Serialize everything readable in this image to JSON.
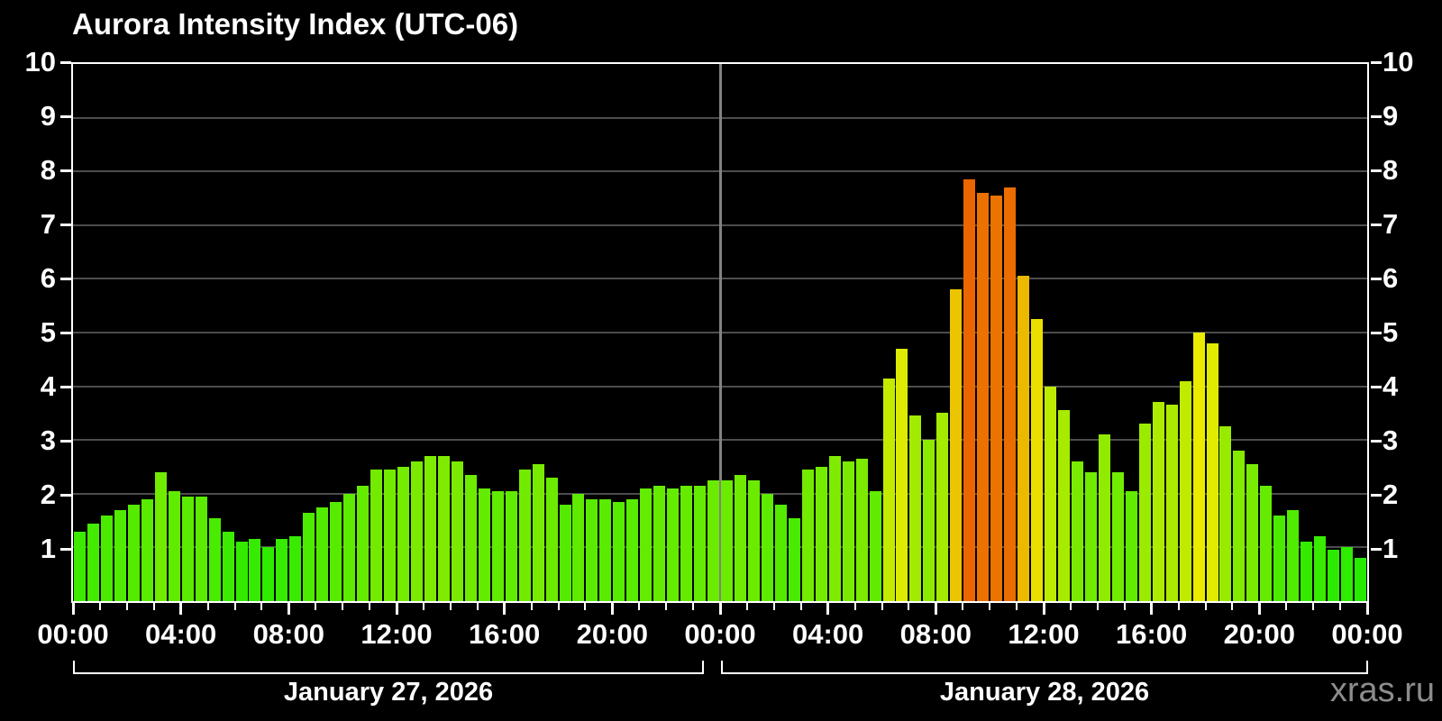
{
  "title": "Aurora Intensity Index (UTC-06)",
  "watermark": "xras.ru",
  "chart_data": {
    "type": "bar",
    "title": "Aurora Intensity Index (UTC-06)",
    "timezone": "UTC-06",
    "ylim": [
      0,
      10
    ],
    "y_ticks": [
      1,
      2,
      3,
      4,
      5,
      6,
      7,
      8,
      9,
      10
    ],
    "y_labels_both_sides": true,
    "grid": true,
    "interval_minutes": 30,
    "x_tick_labels": [
      "00:00",
      "04:00",
      "08:00",
      "12:00",
      "16:00",
      "20:00",
      "00:00",
      "04:00",
      "08:00",
      "12:00",
      "16:00",
      "20:00",
      "00:00"
    ],
    "days": [
      {
        "label": "January 27, 2026",
        "values": [
          1.3,
          1.45,
          1.6,
          1.7,
          1.8,
          1.9,
          2.4,
          2.05,
          1.95,
          1.95,
          1.55,
          1.3,
          1.1,
          1.15,
          1.0,
          1.15,
          1.2,
          1.65,
          1.75,
          1.85,
          2.0,
          2.15,
          2.45,
          2.45,
          2.5,
          2.6,
          2.7,
          2.7,
          2.6,
          2.35,
          2.1,
          2.05,
          2.05,
          2.45,
          2.55,
          2.3,
          1.8,
          2.0,
          1.9,
          1.9,
          1.85,
          1.9,
          2.1,
          2.15,
          2.1,
          2.15,
          2.15,
          2.25
        ]
      },
      {
        "label": "January 28, 2026",
        "values": [
          2.25,
          2.35,
          2.25,
          2.0,
          1.8,
          1.55,
          2.45,
          2.5,
          2.7,
          2.6,
          2.65,
          2.05,
          4.15,
          4.7,
          3.45,
          3.0,
          3.5,
          5.8,
          7.85,
          7.6,
          7.55,
          7.7,
          6.05,
          5.25,
          4.0,
          3.55,
          2.6,
          2.4,
          3.1,
          2.4,
          2.05,
          3.3,
          3.7,
          3.65,
          4.1,
          5.0,
          4.8,
          3.25,
          2.8,
          2.55,
          2.15,
          1.6,
          1.7,
          1.1,
          1.2,
          0.95,
          1.0,
          0.8
        ]
      }
    ],
    "colors": {
      "background": "#000000",
      "frame": "#ffffff",
      "grid": "#4d4d4d",
      "day_boundary_line": "#828282",
      "bar_low_green": "#3cdd00",
      "bar_mid_yellow": "#eeee00",
      "bar_gold": "#fcc800",
      "bar_high_orange": "#f56a00",
      "watermark": "#8c8c8c"
    },
    "legend": "none"
  }
}
